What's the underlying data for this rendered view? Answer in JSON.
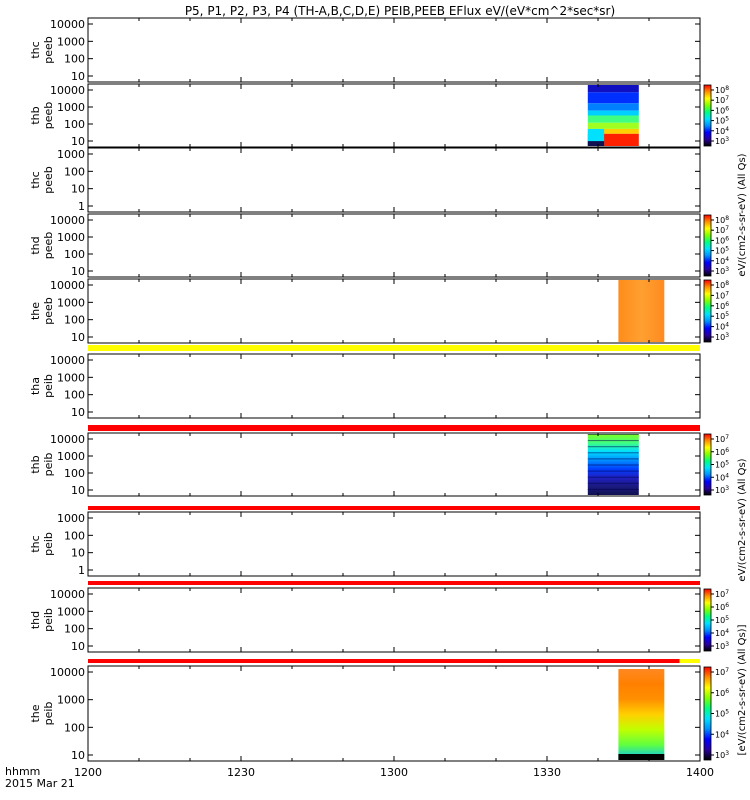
{
  "chart_data": {
    "type": "heatmap",
    "title": "P5, P1, P2, P3, P4 (TH-A,B,C,D,E) PEIB,PEEB EFlux eV/(eV*cm^2*sec*sr)",
    "x_ticks": [
      "1200",
      "1230",
      "1300",
      "1330",
      "1400"
    ],
    "xlim_hhmm": [
      "12:00",
      "14:00"
    ],
    "x_corner_label_1": "hhmm",
    "x_corner_label_2": "2015 Mar 21",
    "colorbar_text_main": "eV/(cm2-s-sr-eV) (All Qs)",
    "colorbar_text_bracket": "[eV/(cm2-s-sr-eV) (All Qs)]",
    "panels": [
      {
        "probe": "thc",
        "instrument": "peeb",
        "yscale": "log",
        "yticks": [
          "10000",
          "1000",
          "100",
          "10"
        ],
        "cbar": false,
        "data_blocks": [],
        "status_bar": null
      },
      {
        "probe": "thb",
        "instrument": "peeb",
        "yscale": "log",
        "yticks": [
          "10000",
          "1000",
          "100",
          "10"
        ],
        "cbar": true,
        "cbar_ticks": [
          8,
          7,
          6,
          5,
          4,
          3
        ],
        "data_blocks": [
          {
            "start": "13:38",
            "end": "13:48",
            "pattern": "thb-peeb"
          }
        ],
        "status_bar": null
      },
      {
        "probe": "thc",
        "instrument": "peeb",
        "yscale": "log",
        "yticks": [
          "1000",
          "100",
          "10",
          "1"
        ],
        "cbar": false,
        "data_blocks": [],
        "status_bar": null
      },
      {
        "probe": "thd",
        "instrument": "peeb",
        "yscale": "log",
        "yticks": [
          "10000",
          "1000",
          "100",
          "10"
        ],
        "cbar": true,
        "cbar_ticks": [
          8,
          7,
          6,
          5,
          4,
          3
        ],
        "data_blocks": [],
        "status_bar": null
      },
      {
        "probe": "the",
        "instrument": "peeb",
        "yscale": "log",
        "yticks": [
          "10000",
          "1000",
          "100",
          "10"
        ],
        "cbar": true,
        "cbar_ticks": [
          8,
          7,
          6,
          5,
          4,
          3
        ],
        "data_blocks": [
          {
            "start": "13:44",
            "end": "13:53",
            "pattern": "the-peeb"
          }
        ],
        "status_bar": {
          "segments": [
            {
              "start": "12:00",
              "end": "14:00",
              "color": "#ffff00"
            }
          ]
        }
      },
      {
        "probe": "tha",
        "instrument": "peib",
        "yscale": "log",
        "yticks": [
          "10000",
          "1000",
          "100",
          "10"
        ],
        "cbar": false,
        "data_blocks": [],
        "status_bar": {
          "segments": [
            {
              "start": "12:00",
              "end": "14:00",
              "color": "#ff0000"
            }
          ]
        }
      },
      {
        "probe": "thb",
        "instrument": "peib",
        "yscale": "log",
        "yticks": [
          "10000",
          "1000",
          "100",
          "10"
        ],
        "cbar": true,
        "cbar_ticks": [
          7,
          6,
          5,
          4,
          3
        ],
        "data_blocks": [
          {
            "start": "13:38",
            "end": "13:48",
            "pattern": "thb-peib"
          }
        ],
        "status_bar": {
          "segments": [
            {
              "start": "12:00",
              "end": "14:00",
              "color": "#ff0000"
            }
          ]
        }
      },
      {
        "probe": "thc",
        "instrument": "peib",
        "yscale": "log",
        "yticks": [
          "1000",
          "100",
          "10",
          "1"
        ],
        "cbar": false,
        "data_blocks": [],
        "status_bar": {
          "segments": [
            {
              "start": "12:00",
              "end": "14:00",
              "color": "#ff0000"
            }
          ]
        }
      },
      {
        "probe": "thd",
        "instrument": "peib",
        "yscale": "log",
        "yticks": [
          "10000",
          "1000",
          "100",
          "10"
        ],
        "cbar": true,
        "cbar_ticks": [
          7,
          6,
          5,
          4,
          3
        ],
        "data_blocks": [],
        "status_bar": {
          "segments": [
            {
              "start": "12:00",
              "end": "13:56",
              "color": "#ff0000"
            },
            {
              "start": "13:56",
              "end": "14:00",
              "color": "#ffff00"
            }
          ]
        }
      },
      {
        "probe": "the",
        "instrument": "peib",
        "yscale": "log",
        "yticks": [
          "10000",
          "1000",
          "100",
          "10"
        ],
        "cbar": true,
        "cbar_ticks": [
          7,
          6,
          5,
          4,
          3
        ],
        "data_blocks": [
          {
            "start": "13:44",
            "end": "13:53",
            "pattern": "the-peib"
          }
        ],
        "status_bar": null
      }
    ]
  }
}
